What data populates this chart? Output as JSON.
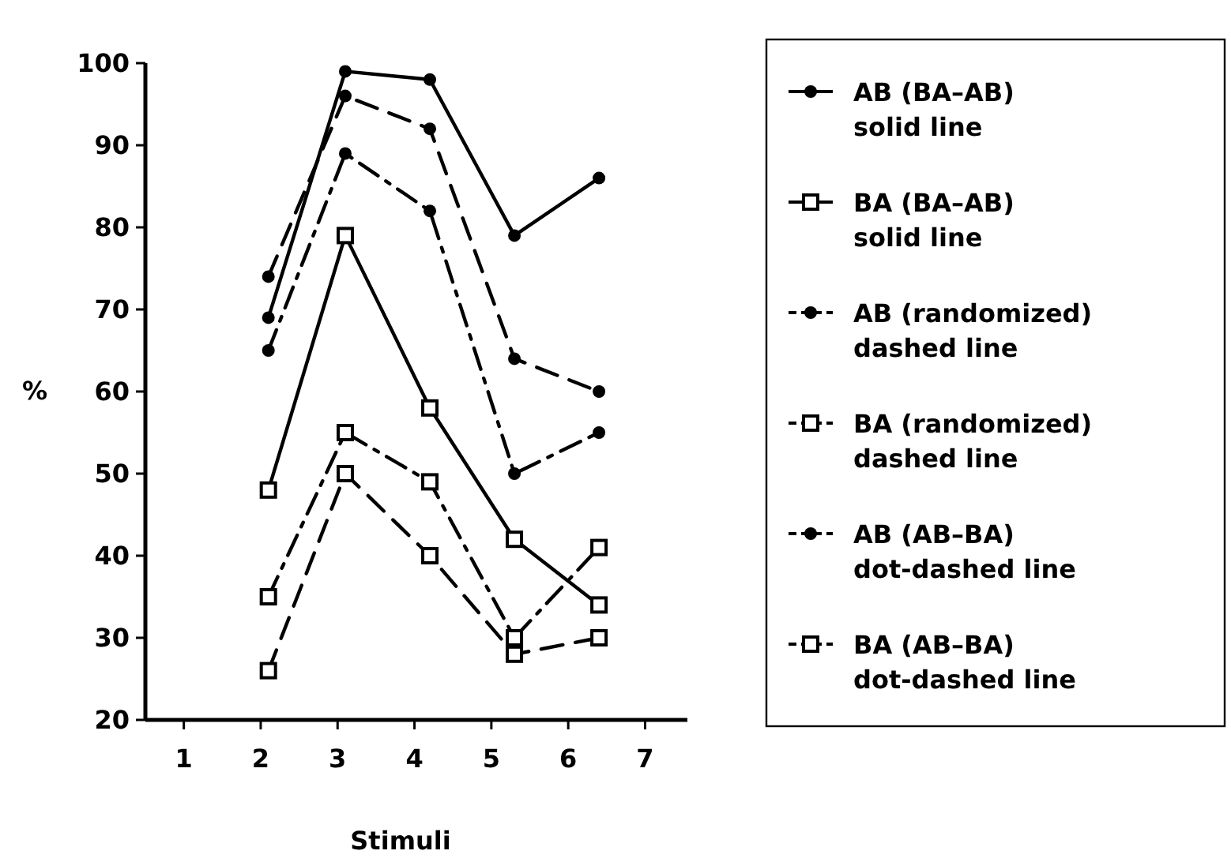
{
  "chart_data": {
    "type": "line",
    "xlabel": "Stimuli",
    "ylabel": "%",
    "xlim": [
      0.5,
      7.55
    ],
    "xticks": [
      1,
      2,
      3,
      4,
      5,
      6,
      7
    ],
    "ylim": [
      20,
      100
    ],
    "yticks": [
      20,
      30,
      40,
      50,
      60,
      70,
      80,
      90,
      100
    ],
    "grid": false,
    "legend": "right",
    "x": [
      2.1,
      3.1,
      4.2,
      5.3,
      6.4
    ],
    "series": [
      {
        "name": "AB (BA–AB)\nsolid line",
        "color": "#000000",
        "marker": "circle",
        "line_style": "solid",
        "values": [
          69,
          99,
          98,
          79,
          86
        ]
      },
      {
        "name": "BA (BA–AB)\nsolid line",
        "color": "#000000",
        "marker": "square",
        "line_style": "solid",
        "values": [
          48,
          79,
          58,
          42,
          34
        ]
      },
      {
        "name": "AB (randomized)\ndashed line",
        "color": "#000000",
        "marker": "circle",
        "line_style": "dashed",
        "values": [
          74,
          96,
          92,
          64,
          60
        ]
      },
      {
        "name": "BA (randomized)\ndashed line",
        "color": "#000000",
        "marker": "square",
        "line_style": "dashed",
        "values": [
          26,
          50,
          40,
          28,
          30
        ]
      },
      {
        "name": "AB (AB–BA)\ndot-dashed line",
        "color": "#000000",
        "marker": "circle",
        "line_style": "dashdot",
        "values": [
          65,
          89,
          82,
          50,
          55
        ]
      },
      {
        "name": "BA (AB–BA)\ndot-dashed line",
        "color": "#000000",
        "marker": "square",
        "line_style": "dashdot",
        "values": [
          35,
          55,
          49,
          30,
          41
        ]
      }
    ]
  }
}
